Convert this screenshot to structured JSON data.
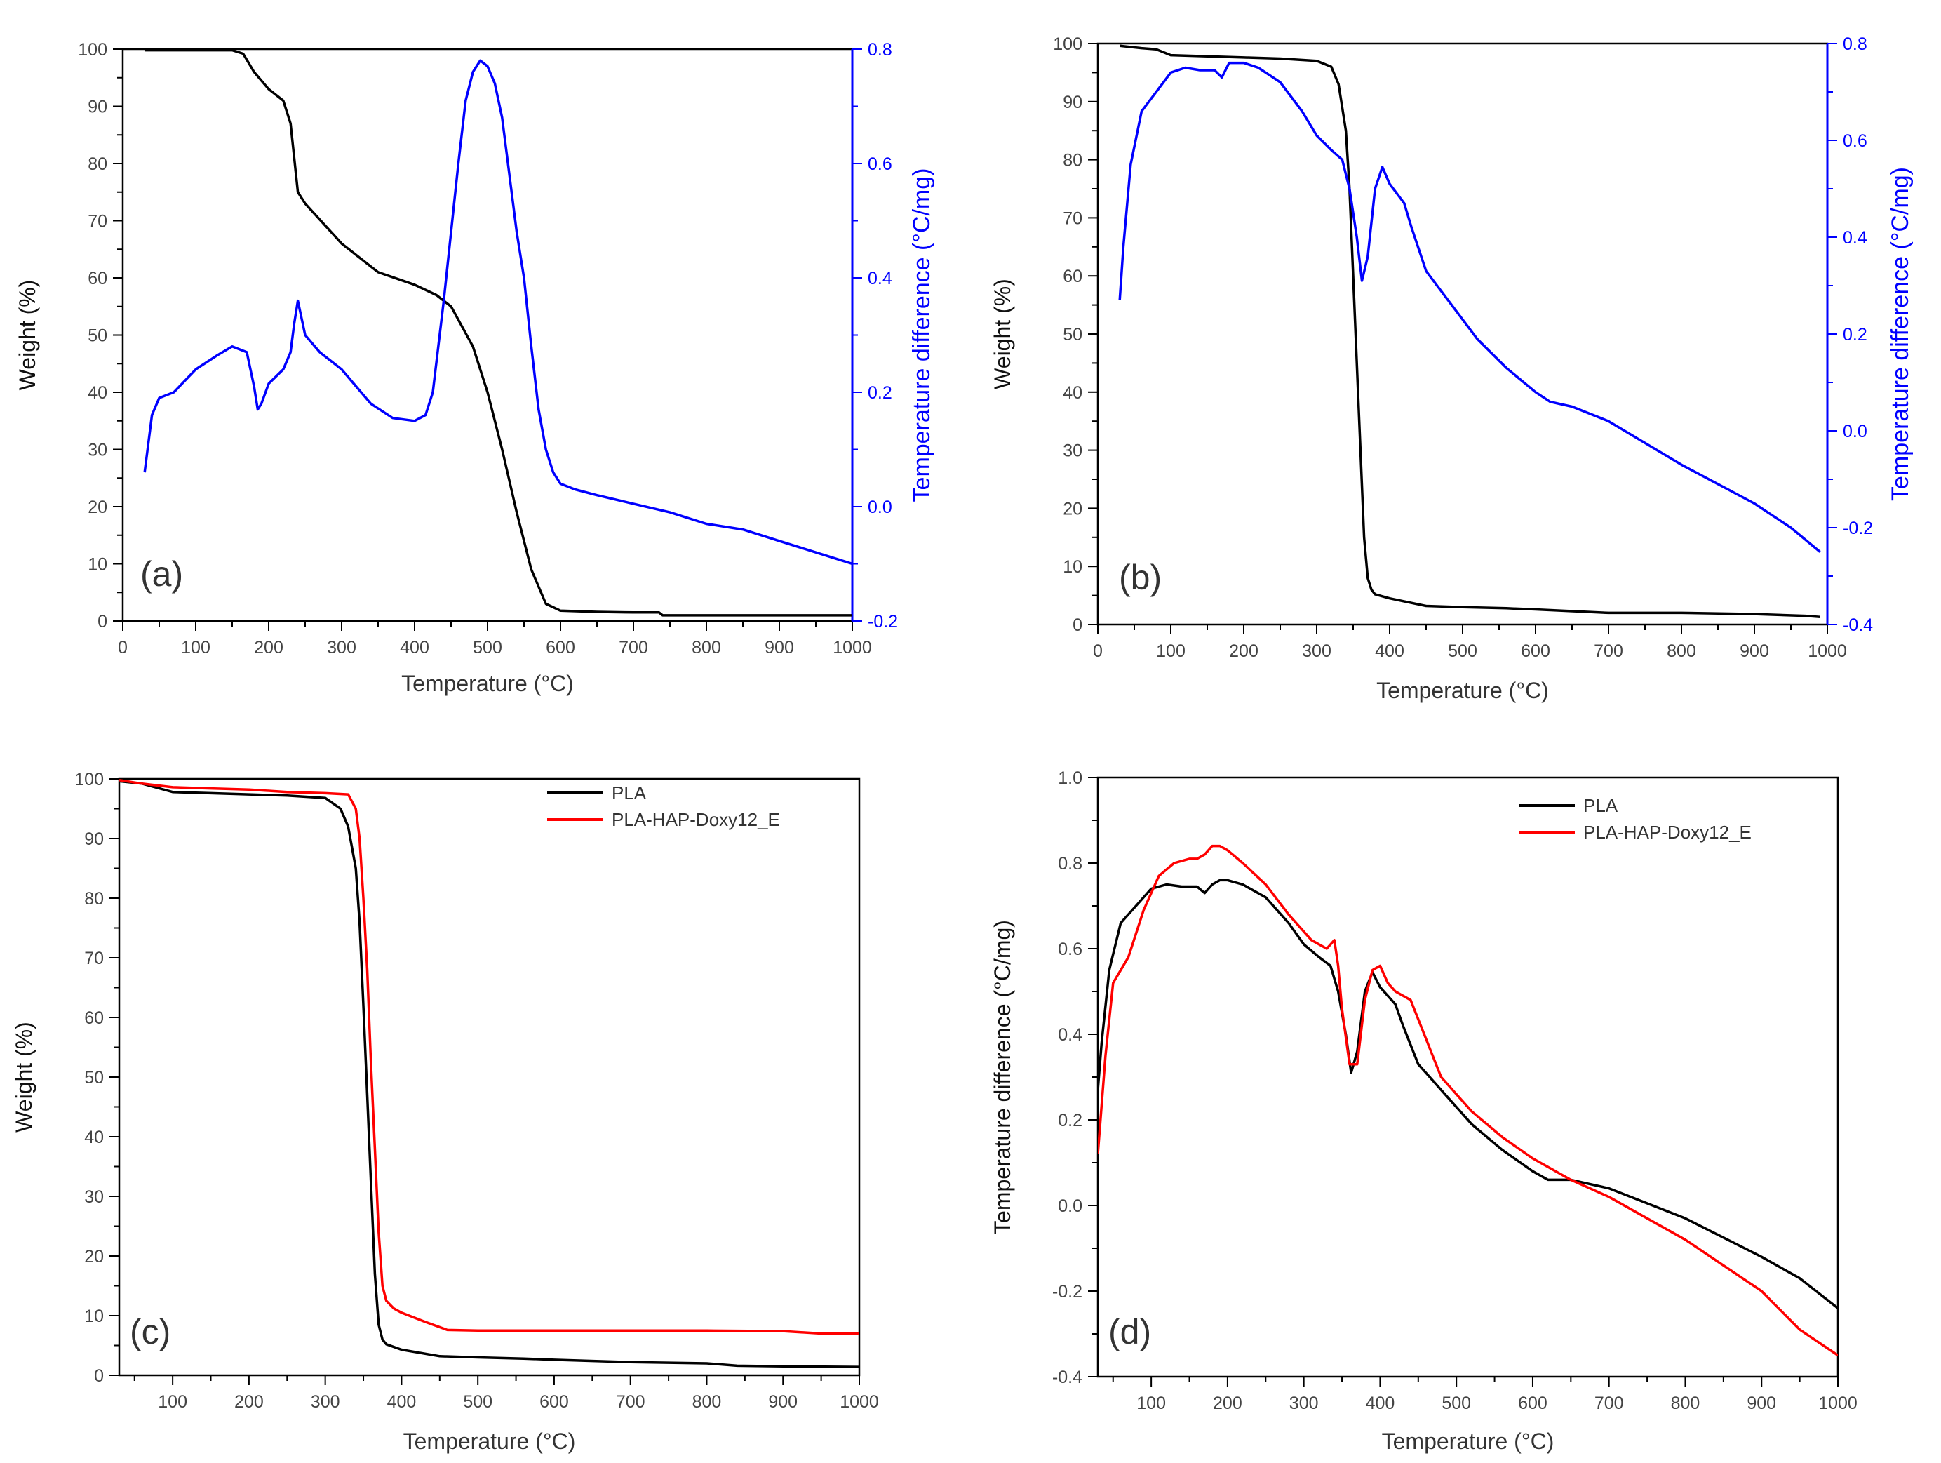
{
  "chart_data": [
    {
      "id": "a",
      "type": "line",
      "panel_label": "(a)",
      "xlabel": "Temperature (°C)",
      "ylabel": "Weight (%)",
      "ylabel_right": "Temperature difference (°C/mg)",
      "xlim": [
        0,
        1000
      ],
      "ylim": [
        0,
        100
      ],
      "ylim_right": [
        -0.2,
        0.8
      ],
      "xticks": [
        0,
        100,
        200,
        300,
        400,
        500,
        600,
        700,
        800,
        900,
        1000
      ],
      "yticks": [
        0,
        10,
        20,
        30,
        40,
        50,
        60,
        70,
        80,
        90,
        100
      ],
      "yticks_right": [
        -0.2,
        0.0,
        0.2,
        0.4,
        0.6,
        0.8
      ],
      "right_axis_color": "#0000ff",
      "series": [
        {
          "name": "Weight",
          "axis": "left",
          "color": "#000000",
          "x": [
            30,
            150,
            165,
            180,
            200,
            220,
            230,
            240,
            250,
            300,
            350,
            400,
            430,
            450,
            480,
            500,
            520,
            540,
            560,
            580,
            600,
            650,
            700,
            735,
            740,
            800,
            900,
            1000
          ],
          "y": [
            99.8,
            99.8,
            99.2,
            96,
            93,
            91,
            87,
            75,
            73,
            66,
            61,
            58.8,
            57,
            55,
            48,
            40,
            30,
            19,
            9,
            3,
            1.8,
            1.6,
            1.5,
            1.5,
            1.0,
            1.0,
            1.0,
            1.0
          ]
        },
        {
          "name": "Temperature difference",
          "axis": "right",
          "color": "#0000ff",
          "x": [
            30,
            40,
            50,
            70,
            100,
            130,
            150,
            170,
            180,
            185,
            190,
            200,
            220,
            230,
            235,
            240,
            250,
            270,
            300,
            340,
            370,
            400,
            415,
            425,
            440,
            450,
            460,
            470,
            480,
            490,
            500,
            510,
            520,
            530,
            540,
            550,
            560,
            570,
            580,
            590,
            600,
            620,
            650,
            700,
            750,
            800,
            850,
            900,
            950,
            1000
          ],
          "y": [
            0.06,
            0.16,
            0.19,
            0.2,
            0.24,
            0.265,
            0.28,
            0.27,
            0.21,
            0.17,
            0.18,
            0.215,
            0.24,
            0.27,
            0.32,
            0.36,
            0.3,
            0.27,
            0.24,
            0.18,
            0.155,
            0.15,
            0.16,
            0.2,
            0.36,
            0.48,
            0.6,
            0.71,
            0.76,
            0.78,
            0.77,
            0.74,
            0.68,
            0.58,
            0.48,
            0.4,
            0.28,
            0.17,
            0.1,
            0.06,
            0.04,
            0.03,
            0.02,
            0.005,
            -0.01,
            -0.03,
            -0.04,
            -0.06,
            -0.08,
            -0.1
          ]
        }
      ]
    },
    {
      "id": "b",
      "type": "line",
      "panel_label": "(b)",
      "xlabel": "Temperature (°C)",
      "ylabel": "Weight (%)",
      "ylabel_right": "Temperature difference (°C/mg)",
      "xlim": [
        0,
        1000
      ],
      "ylim": [
        0,
        100
      ],
      "ylim_right": [
        -0.4,
        0.8
      ],
      "xticks": [
        0,
        100,
        200,
        300,
        400,
        500,
        600,
        700,
        800,
        900,
        1000
      ],
      "yticks": [
        0,
        10,
        20,
        30,
        40,
        50,
        60,
        70,
        80,
        90,
        100
      ],
      "yticks_right": [
        -0.4,
        -0.2,
        0.0,
        0.2,
        0.4,
        0.6,
        0.8
      ],
      "right_axis_color": "#0000ff",
      "series": [
        {
          "name": "Weight",
          "axis": "left",
          "color": "#000000",
          "x": [
            30,
            60,
            80,
            100,
            150,
            200,
            250,
            300,
            320,
            330,
            340,
            345,
            350,
            355,
            360,
            365,
            370,
            375,
            380,
            400,
            450,
            500,
            560,
            600,
            700,
            800,
            900,
            970,
            990
          ],
          "y": [
            99.6,
            99.2,
            99.0,
            98.0,
            97.8,
            97.6,
            97.4,
            97.0,
            96.0,
            93.0,
            85.0,
            75.0,
            60.0,
            45.0,
            30.0,
            15.0,
            8.0,
            6.0,
            5.2,
            4.5,
            3.2,
            3.0,
            2.8,
            2.6,
            2.0,
            2.0,
            1.8,
            1.5,
            1.3
          ]
        },
        {
          "name": "Temperature difference",
          "axis": "right",
          "color": "#0000ff",
          "x": [
            30,
            35,
            45,
            60,
            80,
            100,
            120,
            140,
            160,
            170,
            180,
            200,
            220,
            250,
            280,
            300,
            320,
            335,
            345,
            355,
            362,
            370,
            380,
            390,
            400,
            420,
            430,
            450,
            480,
            520,
            560,
            600,
            620,
            650,
            700,
            800,
            900,
            950,
            990
          ],
          "y": [
            0.27,
            0.38,
            0.55,
            0.66,
            0.7,
            0.74,
            0.75,
            0.745,
            0.745,
            0.73,
            0.76,
            0.76,
            0.75,
            0.72,
            0.66,
            0.61,
            0.58,
            0.56,
            0.5,
            0.4,
            0.31,
            0.36,
            0.5,
            0.545,
            0.51,
            0.47,
            0.42,
            0.33,
            0.27,
            0.19,
            0.13,
            0.08,
            0.06,
            0.05,
            0.02,
            -0.07,
            -0.15,
            -0.2,
            -0.25
          ]
        }
      ]
    },
    {
      "id": "c",
      "type": "line",
      "panel_label": "(c)",
      "xlabel": "Temperature (°C)",
      "ylabel": "Weight (%)",
      "xlim": [
        30,
        1000
      ],
      "ylim": [
        0,
        100
      ],
      "xticks": [
        100,
        200,
        300,
        400,
        500,
        600,
        700,
        800,
        900,
        1000
      ],
      "yticks": [
        0,
        10,
        20,
        30,
        40,
        50,
        60,
        70,
        80,
        90,
        100
      ],
      "legend": "top-right",
      "series": [
        {
          "name": "PLA",
          "color": "#000000",
          "x": [
            30,
            60,
            80,
            100,
            150,
            200,
            250,
            300,
            320,
            330,
            340,
            345,
            350,
            355,
            360,
            365,
            370,
            375,
            380,
            400,
            450,
            500,
            560,
            600,
            700,
            800,
            840,
            900,
            1000
          ],
          "y": [
            99.6,
            99.2,
            98.5,
            97.8,
            97.6,
            97.4,
            97.2,
            96.8,
            95,
            92,
            85,
            76,
            62,
            47,
            32,
            17,
            8.5,
            6,
            5.2,
            4.3,
            3.2,
            3,
            2.8,
            2.6,
            2.2,
            2,
            1.6,
            1.5,
            1.4
          ]
        },
        {
          "name": "PLA-HAP-Doxy12_E",
          "color": "#ff0000",
          "x": [
            30,
            60,
            100,
            150,
            200,
            250,
            300,
            330,
            340,
            345,
            350,
            355,
            360,
            365,
            370,
            375,
            380,
            390,
            400,
            430,
            460,
            500,
            600,
            700,
            800,
            900,
            950,
            1000
          ],
          "y": [
            99.8,
            99.2,
            98.6,
            98.4,
            98.2,
            97.8,
            97.6,
            97.4,
            95,
            90,
            80,
            68,
            52,
            38,
            24,
            15,
            12.5,
            11.2,
            10.5,
            9,
            7.6,
            7.5,
            7.5,
            7.5,
            7.5,
            7.4,
            7,
            7
          ]
        }
      ]
    },
    {
      "id": "d",
      "type": "line",
      "panel_label": "(d)",
      "xlabel": "Temperature (°C)",
      "ylabel": "Temperature difference (°C/mg)",
      "xlim": [
        30,
        1000
      ],
      "ylim": [
        -0.4,
        1.0
      ],
      "xticks": [
        100,
        200,
        300,
        400,
        500,
        600,
        700,
        800,
        900,
        1000
      ],
      "yticks": [
        -0.4,
        -0.2,
        0.0,
        0.2,
        0.4,
        0.6,
        0.8,
        1.0
      ],
      "legend": "top-right",
      "series": [
        {
          "name": "PLA",
          "color": "#000000",
          "x": [
            30,
            35,
            45,
            60,
            80,
            100,
            120,
            140,
            160,
            170,
            180,
            190,
            200,
            220,
            250,
            280,
            300,
            320,
            335,
            345,
            355,
            362,
            370,
            380,
            390,
            400,
            420,
            430,
            450,
            480,
            520,
            560,
            600,
            620,
            650,
            700,
            800,
            900,
            950,
            1000
          ],
          "y": [
            0.27,
            0.38,
            0.55,
            0.66,
            0.7,
            0.74,
            0.75,
            0.745,
            0.745,
            0.73,
            0.75,
            0.76,
            0.76,
            0.75,
            0.72,
            0.66,
            0.61,
            0.58,
            0.56,
            0.5,
            0.4,
            0.31,
            0.36,
            0.5,
            0.545,
            0.51,
            0.47,
            0.42,
            0.33,
            0.27,
            0.19,
            0.13,
            0.08,
            0.06,
            0.06,
            0.04,
            -0.03,
            -0.12,
            -0.17,
            -0.24
          ]
        },
        {
          "name": "PLA-HAP-Doxy12_E",
          "color": "#ff0000",
          "x": [
            30,
            40,
            50,
            70,
            90,
            110,
            130,
            150,
            160,
            170,
            180,
            190,
            200,
            220,
            250,
            280,
            310,
            330,
            340,
            345,
            350,
            360,
            370,
            380,
            390,
            400,
            410,
            420,
            440,
            460,
            480,
            520,
            560,
            600,
            650,
            700,
            800,
            900,
            950,
            1000
          ],
          "y": [
            0.12,
            0.35,
            0.52,
            0.58,
            0.69,
            0.77,
            0.8,
            0.81,
            0.81,
            0.82,
            0.84,
            0.84,
            0.83,
            0.8,
            0.75,
            0.68,
            0.62,
            0.6,
            0.62,
            0.56,
            0.46,
            0.33,
            0.33,
            0.48,
            0.55,
            0.56,
            0.52,
            0.5,
            0.48,
            0.39,
            0.3,
            0.22,
            0.16,
            0.11,
            0.06,
            0.02,
            -0.08,
            -0.2,
            -0.29,
            -0.35
          ]
        }
      ]
    }
  ]
}
